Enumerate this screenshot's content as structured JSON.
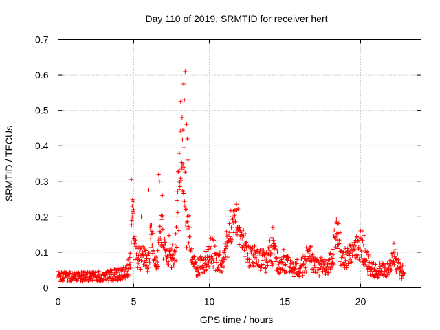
{
  "chart_data": {
    "type": "scatter",
    "title": "Day 110 of 2019, SRMTID for receiver hert",
    "xlabel": "GPS time / hours",
    "ylabel": "SRMTID / TECUs",
    "xlim": [
      0,
      24
    ],
    "ylim": [
      0,
      0.7
    ],
    "xticks": [
      0,
      5,
      10,
      15,
      20
    ],
    "yticks": [
      0,
      0.1,
      0.2,
      0.3,
      0.4,
      0.5,
      0.6,
      0.7
    ],
    "grid": true,
    "marker": "plus",
    "color": "#ff0000",
    "time_span": [
      0,
      22.9
    ],
    "step": 0.02,
    "baseline": [
      [
        0,
        0.032
      ],
      [
        3,
        0.032
      ],
      [
        4.3,
        0.04
      ],
      [
        4.8,
        0.06
      ],
      [
        5.0,
        0.075
      ],
      [
        5.5,
        0.06
      ],
      [
        6.5,
        0.06
      ],
      [
        7.5,
        0.07
      ],
      [
        8.5,
        0.06
      ],
      [
        9.5,
        0.055
      ],
      [
        10.5,
        0.06
      ],
      [
        11.5,
        0.09
      ],
      [
        12.5,
        0.08
      ],
      [
        14,
        0.065
      ],
      [
        15,
        0.055
      ],
      [
        16,
        0.055
      ],
      [
        17,
        0.06
      ],
      [
        18,
        0.06
      ],
      [
        19,
        0.075
      ],
      [
        20,
        0.07
      ],
      [
        20.8,
        0.05
      ],
      [
        22,
        0.05
      ],
      [
        22.9,
        0.045
      ]
    ],
    "bursts": [
      {
        "t": 4.95,
        "w": 0.12,
        "a": 0.12
      },
      {
        "t": 5.1,
        "w": 0.3,
        "a": 0.04
      },
      {
        "t": 5.6,
        "w": 0.2,
        "a": 0.04
      },
      {
        "t": 6.15,
        "w": 0.12,
        "a": 0.12
      },
      {
        "t": 6.8,
        "w": 0.18,
        "a": 0.14
      },
      {
        "t": 7.3,
        "w": 0.25,
        "a": 0.05
      },
      {
        "t": 8.05,
        "w": 0.22,
        "a": 0.26
      },
      {
        "t": 8.3,
        "w": 0.25,
        "a": 0.22
      },
      {
        "t": 8.7,
        "w": 0.2,
        "a": 0.08
      },
      {
        "t": 9.8,
        "w": 0.4,
        "a": 0.03
      },
      {
        "t": 10.3,
        "w": 0.3,
        "a": 0.04
      },
      {
        "t": 11.3,
        "w": 0.3,
        "a": 0.06
      },
      {
        "t": 11.8,
        "w": 0.35,
        "a": 0.11
      },
      {
        "t": 12.3,
        "w": 0.3,
        "a": 0.04
      },
      {
        "t": 13.2,
        "w": 0.3,
        "a": 0.03
      },
      {
        "t": 14.2,
        "w": 0.25,
        "a": 0.07
      },
      {
        "t": 15.0,
        "w": 0.3,
        "a": 0.02
      },
      {
        "t": 16.6,
        "w": 0.3,
        "a": 0.03
      },
      {
        "t": 18.4,
        "w": 0.3,
        "a": 0.1
      },
      {
        "t": 19.5,
        "w": 0.4,
        "a": 0.04
      },
      {
        "t": 20.1,
        "w": 0.3,
        "a": 0.06
      },
      {
        "t": 22.2,
        "w": 0.25,
        "a": 0.05
      }
    ],
    "spikes": [
      [
        4.85,
        0.305
      ],
      [
        4.9,
        0.23
      ],
      [
        5.0,
        0.22
      ],
      [
        5.5,
        0.2
      ],
      [
        6.0,
        0.275
      ],
      [
        6.65,
        0.32
      ],
      [
        6.9,
        0.26
      ],
      [
        6.7,
        0.3
      ],
      [
        8.1,
        0.525
      ],
      [
        8.3,
        0.575
      ],
      [
        8.4,
        0.61
      ],
      [
        8.35,
        0.53
      ],
      [
        8.5,
        0.46
      ],
      [
        8.2,
        0.48
      ],
      [
        8.55,
        0.42
      ],
      [
        8.6,
        0.36
      ],
      [
        8.25,
        0.445
      ],
      [
        11.8,
        0.235
      ],
      [
        11.7,
        0.22
      ],
      [
        14.2,
        0.17
      ],
      [
        18.4,
        0.185
      ],
      [
        18.45,
        0.18
      ],
      [
        20.1,
        0.16
      ],
      [
        22.2,
        0.125
      ]
    ],
    "noise": 0.018
  }
}
